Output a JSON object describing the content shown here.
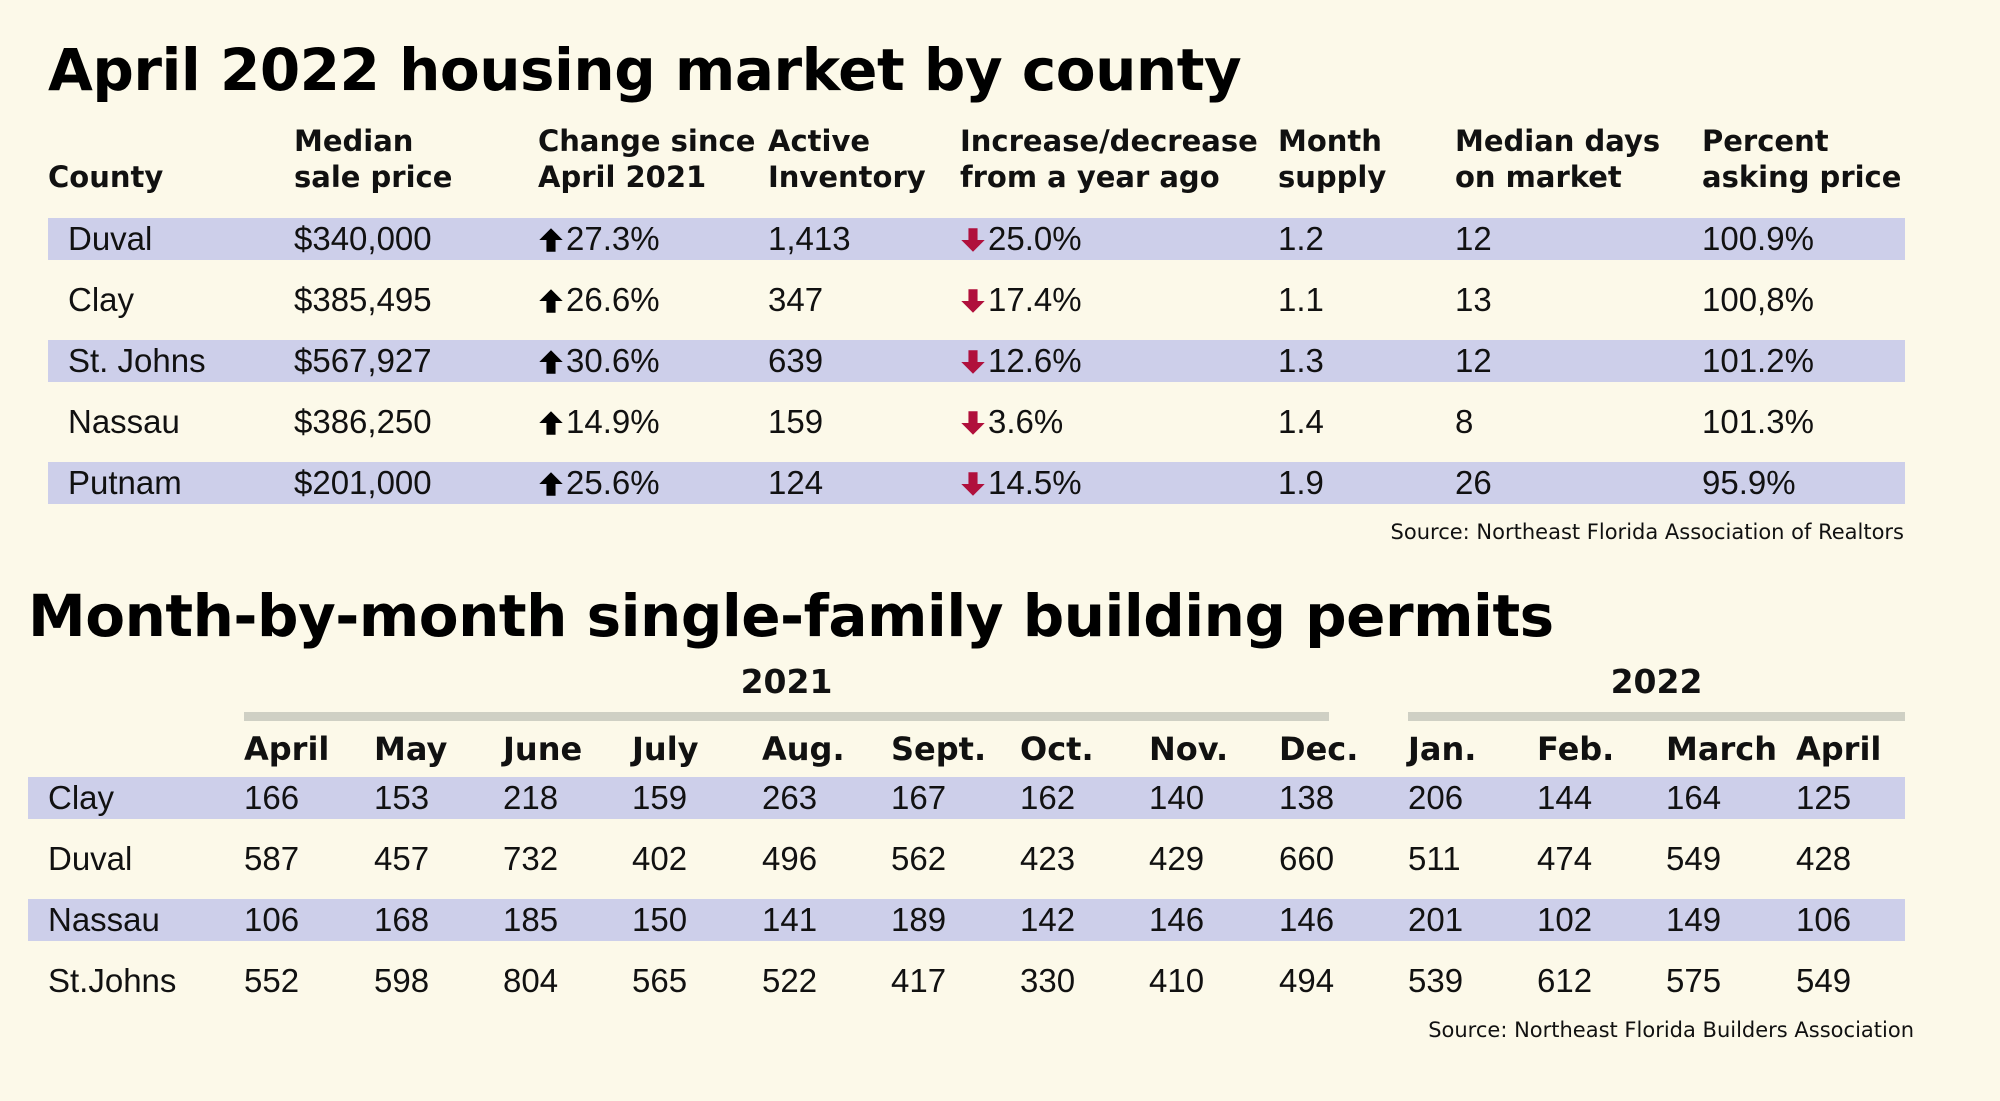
{
  "title1": "April 2022 housing market by county",
  "title2": "Month-by-month single-family building permits",
  "colors": {
    "background": "#fcf9e9",
    "band": "#cdcfea",
    "up_arrow": "#000000",
    "down_arrow": "#b0103c",
    "year_rule": "#cfd0c4"
  },
  "icons": {
    "up": "up-arrow-icon",
    "down": "down-arrow-icon"
  },
  "chart_data": [
    {
      "type": "table",
      "title": "April 2022 housing market by county",
      "columns": [
        [
          "County"
        ],
        [
          "Median",
          "sale price"
        ],
        [
          "Change since",
          "April 2021"
        ],
        [
          "Active",
          "Inventory"
        ],
        [
          "Increase/decrease",
          "from a year ago"
        ],
        [
          "Month",
          "supply"
        ],
        [
          "Median days",
          "on market"
        ],
        [
          "Percent",
          "asking price"
        ]
      ],
      "rows": [
        {
          "county": "Duval",
          "price": "$340,000",
          "change": "27.3%",
          "inventory": "1,413",
          "yoy": "25.0%",
          "supply": "1.2",
          "days": "12",
          "asking": "100.9%"
        },
        {
          "county": "Clay",
          "price": "$385,495",
          "change": "26.6%",
          "inventory": "347",
          "yoy": "17.4%",
          "supply": "1.1",
          "days": "13",
          "asking": "100,8%"
        },
        {
          "county": "St. Johns",
          "price": "$567,927",
          "change": "30.6%",
          "inventory": "639",
          "yoy": "12.6%",
          "supply": "1.3",
          "days": "12",
          "asking": "101.2%"
        },
        {
          "county": "Nassau",
          "price": "$386,250",
          "change": "14.9%",
          "inventory": "159",
          "yoy": "3.6%",
          "supply": "1.4",
          "days": "8",
          "asking": "101.3%"
        },
        {
          "county": "Putnam",
          "price": "$201,000",
          "change": "25.6%",
          "inventory": "124",
          "yoy": "14.5%",
          "supply": "1.9",
          "days": "26",
          "asking": "95.9%"
        }
      ],
      "change_direction": "up",
      "yoy_direction": "down",
      "source": "Source: Northeast Florida Association of Realtors"
    },
    {
      "type": "table",
      "title": "Month-by-month single-family building permits",
      "years": [
        "2021",
        "2022"
      ],
      "months": [
        "April",
        "May",
        "June",
        "July",
        "Aug.",
        "Sept.",
        "Oct.",
        "Nov.",
        "Dec.",
        "Jan.",
        "Feb.",
        "March",
        "April"
      ],
      "rows": [
        {
          "county": "Clay",
          "values": [
            "166",
            "153",
            "218",
            "159",
            "263",
            "167",
            "162",
            "140",
            "138",
            "206",
            "144",
            "164",
            "125"
          ]
        },
        {
          "county": "Duval",
          "values": [
            "587",
            "457",
            "732",
            "402",
            "496",
            "562",
            "423",
            "429",
            "660",
            "511",
            "474",
            "549",
            "428"
          ]
        },
        {
          "county": "Nassau",
          "values": [
            "106",
            "168",
            "185",
            "150",
            "141",
            "189",
            "142",
            "146",
            "146",
            "201",
            "102",
            "149",
            "106"
          ]
        },
        {
          "county": "St.Johns",
          "values": [
            "552",
            "598",
            "804",
            "565",
            "522",
            "417",
            "330",
            "410",
            "494",
            "539",
            "612",
            "575",
            "549"
          ]
        }
      ],
      "source": "Source: Northeast Florida Builders Association"
    }
  ]
}
